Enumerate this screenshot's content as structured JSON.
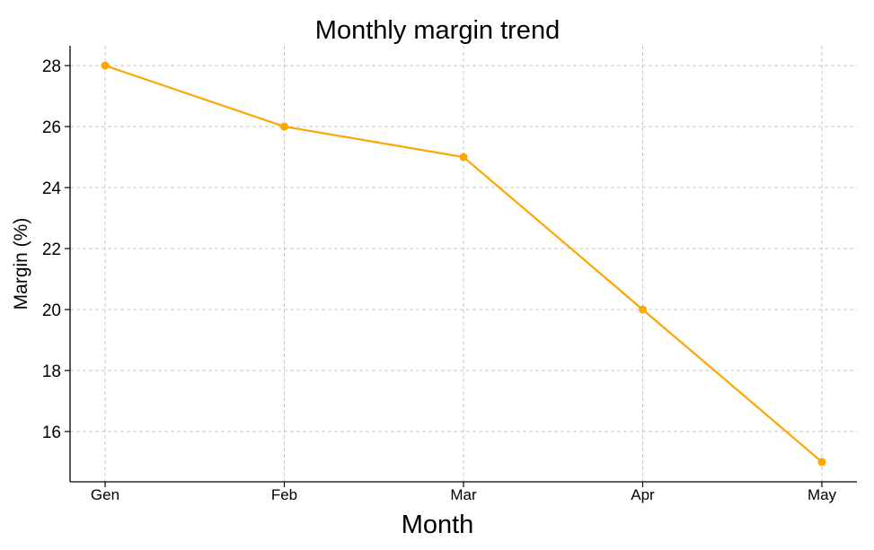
{
  "chart_data": {
    "type": "line",
    "title": "Monthly margin trend",
    "xlabel": "Month",
    "ylabel": "Margin (%)",
    "categories": [
      "Gen",
      "Feb",
      "Mar",
      "Apr",
      "May"
    ],
    "series": [
      {
        "values": [
          28,
          26,
          25,
          20,
          15
        ],
        "color": "#ffa500",
        "marker": "circle"
      }
    ],
    "yticks": [
      16,
      18,
      20,
      22,
      24,
      26,
      28
    ],
    "ylim": [
      14.35,
      28.65
    ],
    "grid": true,
    "grid_style": "dashed",
    "legend": "none"
  }
}
